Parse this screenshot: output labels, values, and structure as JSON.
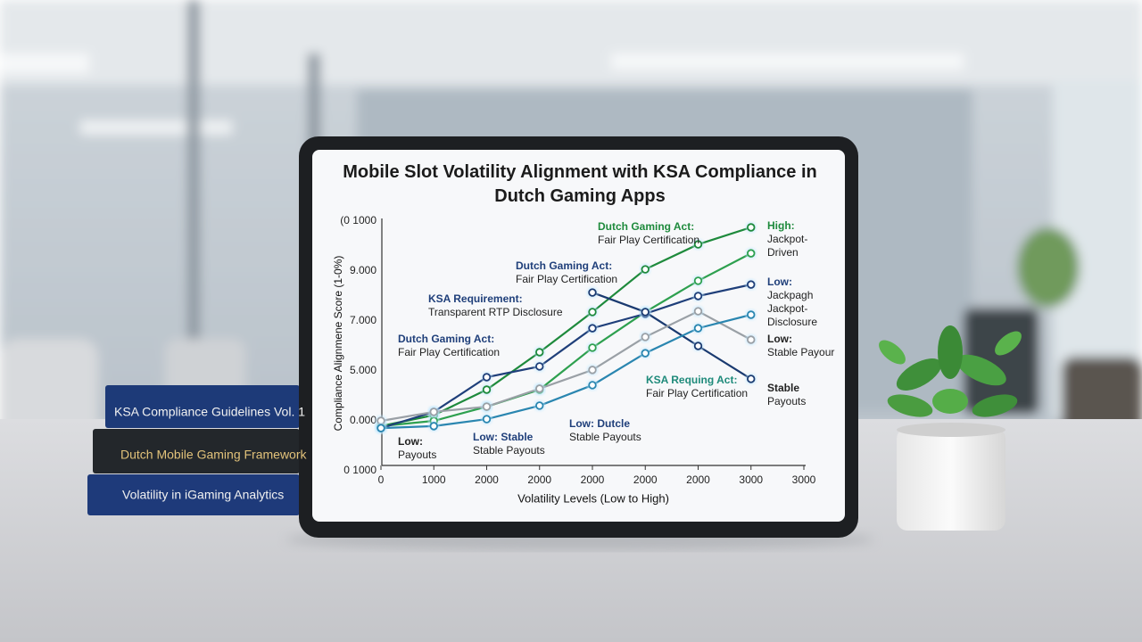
{
  "chart_data": {
    "type": "line",
    "title": "Mobile Slot Volatility Alignment with KSA Compliance in Dutch Gaming Apps",
    "x_label": "Volatility Levels (Low to High)",
    "y_label": "Compliance Alignmene Score (1-0%)",
    "categories": [
      "0",
      "1000",
      "2000",
      "2000",
      "2000",
      "2000",
      "2000",
      "3000",
      "3000"
    ],
    "ylim": [
      0,
      100
    ],
    "ytick_labels": [
      "(0 1000",
      "9.000",
      "7.000",
      "5.000",
      "0.000",
      "0 1000"
    ],
    "series": [
      {
        "color": "#1e8a3c",
        "values": [
          17.9,
          22.3,
          32.5,
          47.5,
          63.6,
          80.7,
          90.7,
          97.5,
          null
        ]
      },
      {
        "color": "#2ea04f",
        "values": [
          17.9,
          20,
          25.7,
          32.5,
          49.3,
          63.6,
          76.1,
          87.1,
          null
        ]
      },
      {
        "color": "#1f3f7a",
        "values": [
          17.1,
          23.6,
          37.5,
          41.8,
          57.1,
          62.9,
          70,
          74.6,
          null
        ]
      },
      {
        "color": "#1a3a70",
        "values": [
          null,
          null,
          null,
          null,
          71.4,
          63.6,
          50,
          36.8,
          null
        ]
      },
      {
        "color": "#9aa0a6",
        "values": [
          20,
          23.6,
          25.7,
          32.9,
          40.4,
          53.6,
          63.9,
          52.5,
          null
        ]
      },
      {
        "color": "#2a86b0",
        "values": [
          17.1,
          17.9,
          20.7,
          26.1,
          34.3,
          47.1,
          57.1,
          62.5,
          null
        ]
      }
    ],
    "annotations": [
      [
        "Dutch Gaming Act:",
        "Fair Play Certification"
      ],
      [
        "Dutch Gaming Act:",
        "Fair Play Certification"
      ],
      [
        "KSA Requirement:",
        "Transparent RTP Disclosure"
      ],
      [
        "Dutch Gaming Act:",
        "Fair Play Certification"
      ],
      [
        "High:",
        "Jackpot-",
        "Driven"
      ],
      [
        "Low:",
        "Jackpagh",
        "Jackpot-",
        "Disclosure"
      ],
      [
        "Low:",
        "Stable Payour"
      ],
      [
        "Stable",
        "Payouts"
      ],
      [
        "KSA Requing Act:",
        "Fair Play Certification"
      ],
      [
        "Low:",
        "Payouts"
      ],
      [
        "Low: Stable",
        "Stable Payouts"
      ],
      [
        "Low: Dutcle",
        "Stable Payouts"
      ]
    ]
  },
  "books": [
    "KSA Compliance Guidelines Vol. 1",
    "Dutch Mobile Gaming Framework",
    "Volatility in iGaming Analytics"
  ]
}
